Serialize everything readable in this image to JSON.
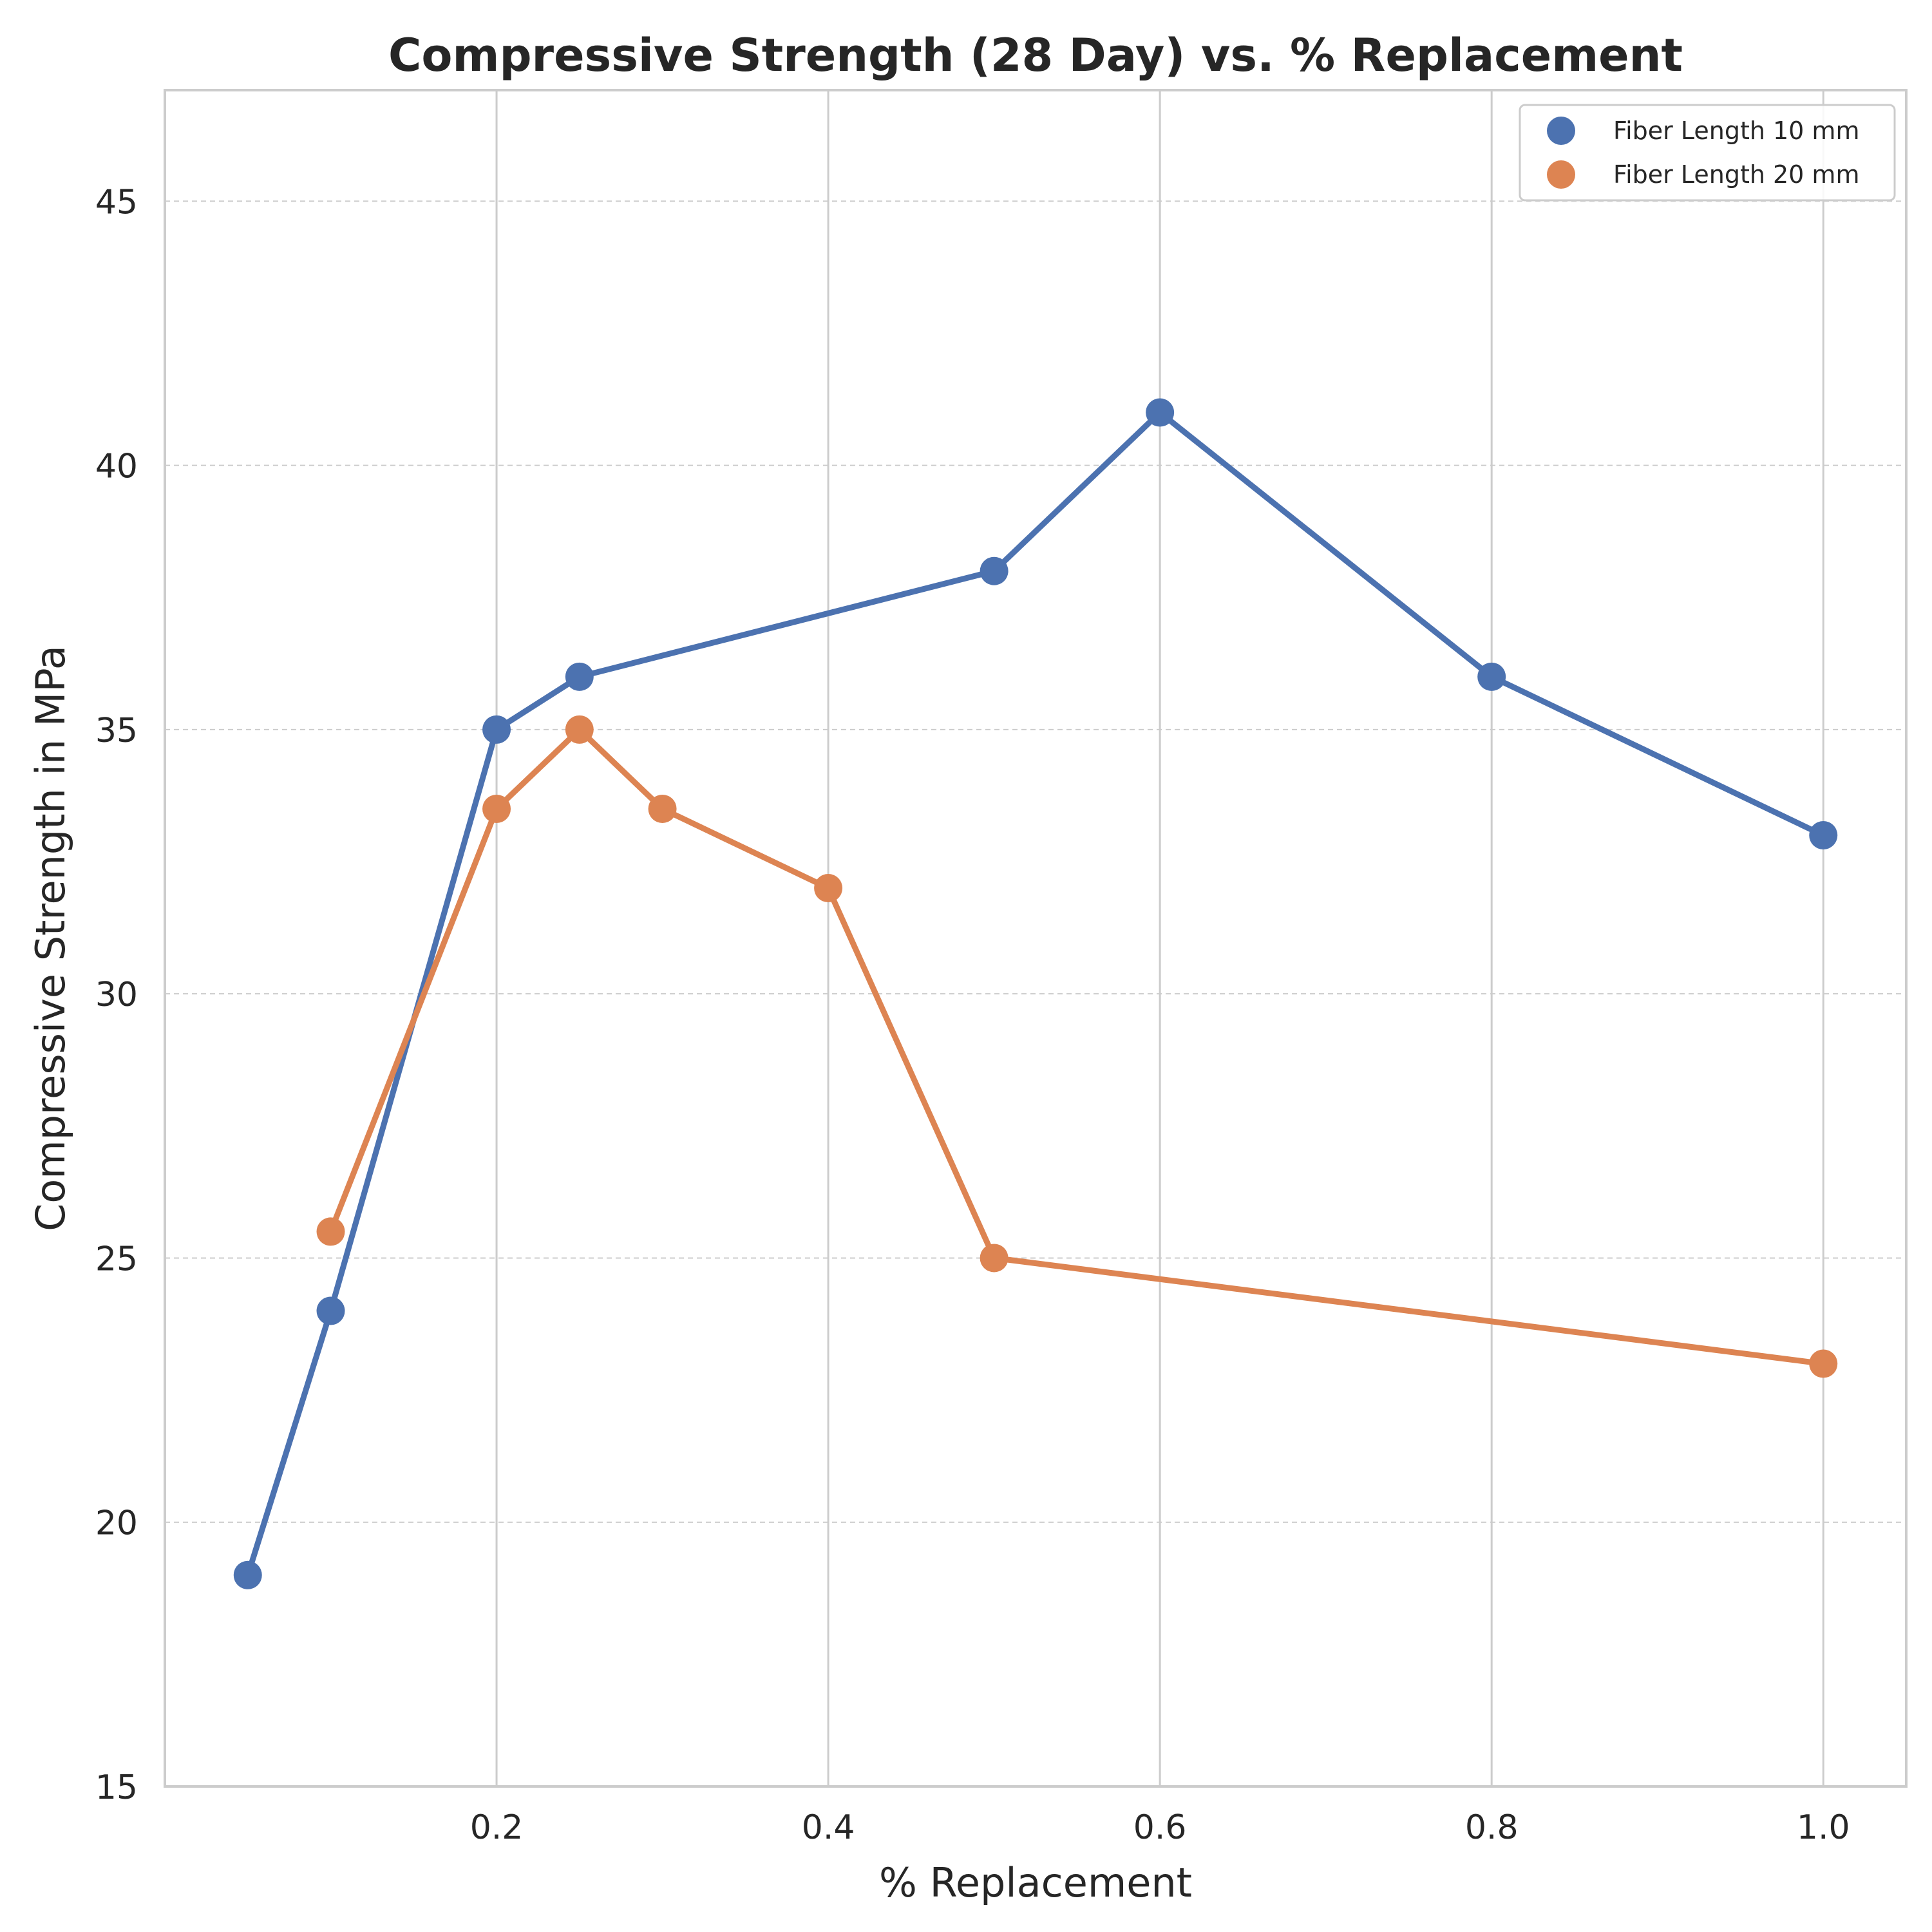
{
  "chart_data": {
    "type": "line",
    "title": "Compressive Strength (28 Day) vs. % Replacement",
    "xlabel": "% Replacement",
    "ylabel": "Compressive Strength in MPa",
    "xlim": [
      0.0,
      1.05
    ],
    "ylim": [
      15,
      47.1
    ],
    "xticks": [
      0.2,
      0.4,
      0.6,
      0.8,
      1.0
    ],
    "xtick_labels": [
      "0.2",
      "0.4",
      "0.6",
      "0.8",
      "1.0"
    ],
    "yticks": [
      15,
      20,
      25,
      30,
      35,
      40,
      45
    ],
    "ytick_labels": [
      "15",
      "20",
      "25",
      "30",
      "35",
      "40",
      "45"
    ],
    "grid": true,
    "legend_position": "top-right",
    "series": [
      {
        "name": "Fiber Length 10 mm",
        "color": "#4c72b0",
        "x": [
          0.05,
          0.1,
          0.2,
          0.25,
          0.5,
          0.6,
          0.8,
          1.0
        ],
        "y": [
          19,
          24,
          35,
          36,
          38,
          41,
          36,
          33
        ]
      },
      {
        "name": "Fiber Length 20 mm",
        "color": "#dd8452",
        "x": [
          0.1,
          0.2,
          0.25,
          0.3,
          0.4,
          0.5,
          1.0
        ],
        "y": [
          25.5,
          33.5,
          35,
          33.5,
          32,
          25,
          23
        ]
      }
    ]
  }
}
